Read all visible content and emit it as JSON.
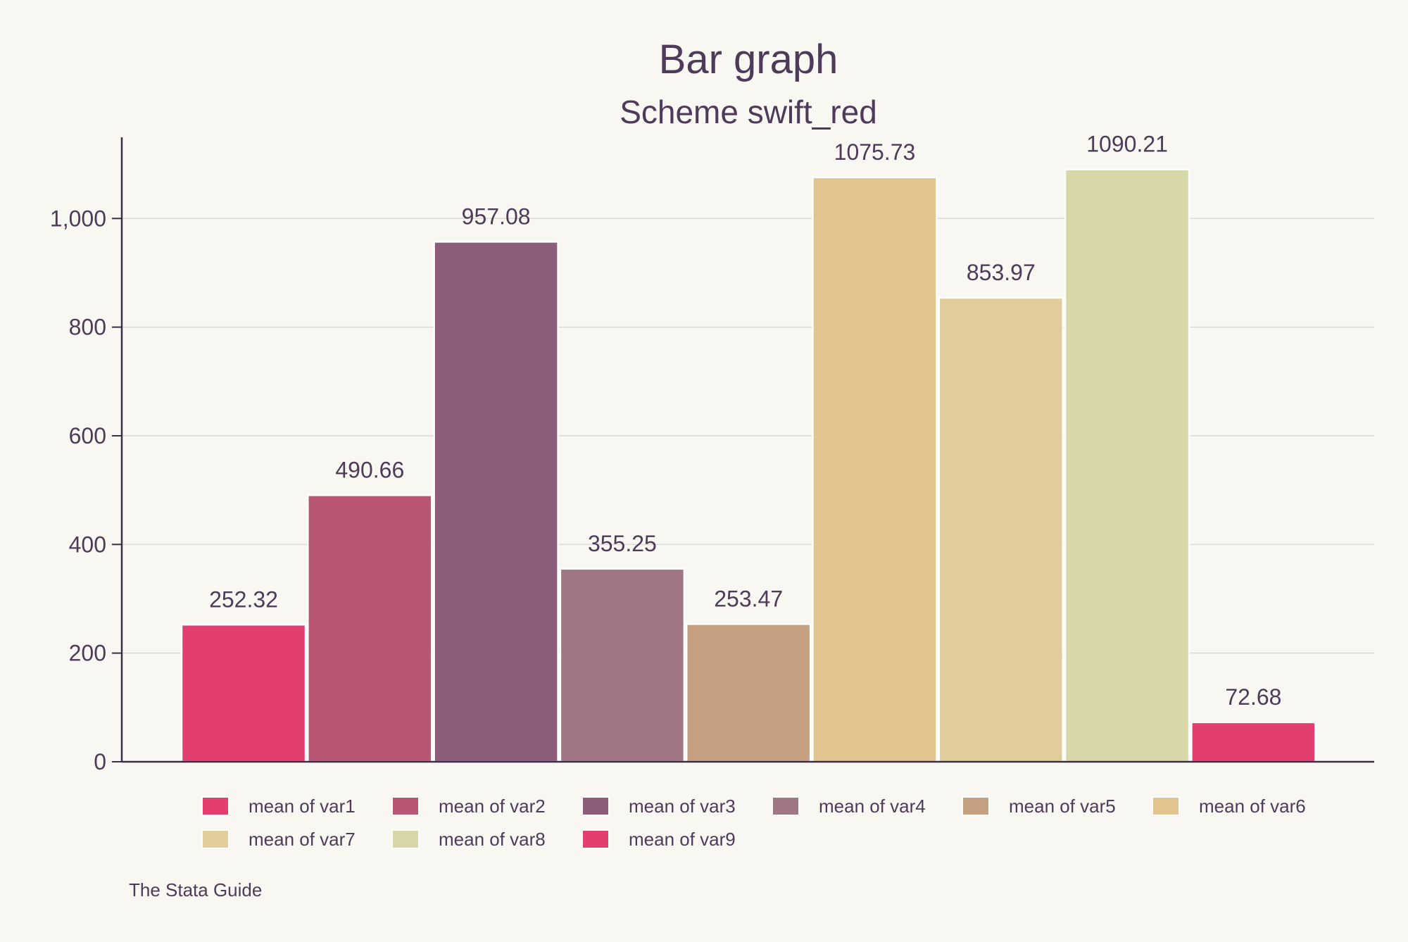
{
  "chart_data": {
    "type": "bar",
    "title": "Bar graph",
    "subtitle": "Scheme swift_red",
    "note": "The Stata Guide",
    "xlabel": "",
    "ylabel": "",
    "ylim": [
      0,
      1150
    ],
    "yticks": [
      0,
      200,
      400,
      600,
      800,
      1000
    ],
    "ytick_labels": [
      "0",
      "200",
      "400",
      "600",
      "800",
      "1,000"
    ],
    "grid": true,
    "legend_position": "bottom",
    "series": [
      {
        "name": "mean of var1",
        "value": 252.32,
        "label": "252.32",
        "color": "#e23e6e"
      },
      {
        "name": "mean of var2",
        "value": 490.66,
        "label": "490.66",
        "color": "#b95674"
      },
      {
        "name": "mean of var3",
        "value": 957.08,
        "label": "957.08",
        "color": "#8c5d78"
      },
      {
        "name": "mean of var4",
        "value": 355.25,
        "label": "355.25",
        "color": "#a07682"
      },
      {
        "name": "mean of var5",
        "value": 253.47,
        "label": "253.47",
        "color": "#c5a181"
      },
      {
        "name": "mean of var6",
        "value": 1075.73,
        "label": "1075.73",
        "color": "#e1c48f"
      },
      {
        "name": "mean of var7",
        "value": 853.97,
        "label": "853.97",
        "color": "#e0cd9b"
      },
      {
        "name": "mean of var8",
        "value": 1090.21,
        "label": "1090.21",
        "color": "#d8d7a7"
      },
      {
        "name": "mean of var9",
        "value": 72.68,
        "label": "72.68",
        "color": "#e23e6e"
      }
    ]
  }
}
